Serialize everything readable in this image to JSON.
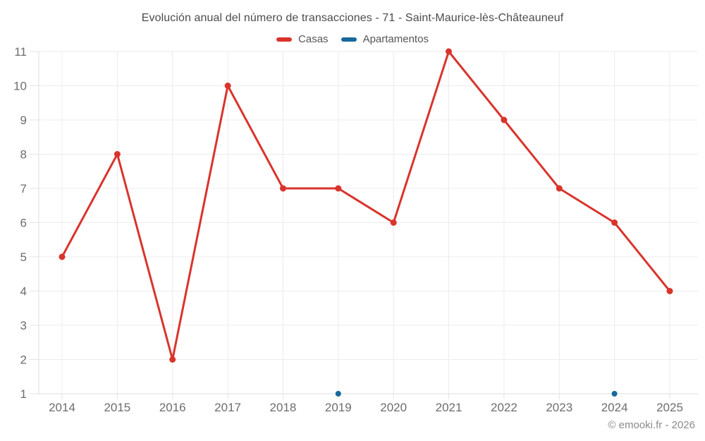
{
  "title": "Evolución anual del número de transacciones - 71 - Saint-Maurice-lès-Châteauneuf",
  "watermark": "© emooki.fr - 2026",
  "colors": {
    "casas": "#d9342c",
    "apartamentos": "#17699c",
    "gridline": "#ececec",
    "axis_border": "#dcdcdc",
    "tick": "#e3e3e3",
    "axis_label": "#6d6d6d",
    "title_text": "#4c4c4c",
    "legend_text": "#565656",
    "watermark_text": "#8b8b8b"
  },
  "chart_data": {
    "type": "line",
    "title": "Evolución anual del número de transacciones - 71 - Saint-Maurice-lès-Châteauneuf",
    "categories": [
      "2014",
      "2015",
      "2016",
      "2017",
      "2018",
      "2019",
      "2020",
      "2021",
      "2022",
      "2023",
      "2024",
      "2025"
    ],
    "series": [
      {
        "name": "Casas",
        "color": "#d9342c",
        "style": "line-with-markers",
        "values": [
          5,
          8,
          2,
          10,
          7,
          7,
          6,
          11,
          9,
          7,
          6,
          4
        ]
      },
      {
        "name": "Apartamentos",
        "color": "#17699c",
        "style": "points-only",
        "values": [
          null,
          null,
          null,
          null,
          null,
          1,
          null,
          null,
          null,
          null,
          1,
          null
        ]
      }
    ],
    "xlabel": "",
    "ylabel": "",
    "ylim": [
      1,
      11
    ],
    "yticks": [
      1,
      2,
      3,
      4,
      5,
      6,
      7,
      8,
      9,
      10,
      11
    ],
    "grid": true,
    "legend_position": "top",
    "annotation": "© emooki.fr - 2026"
  }
}
